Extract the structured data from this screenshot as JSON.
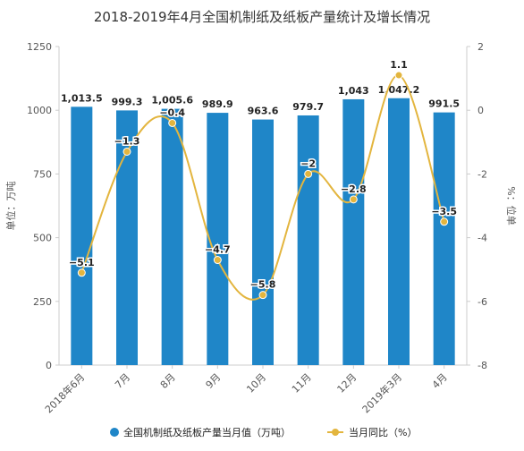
{
  "chart_data": {
    "type": "bar",
    "title": "2018-2019年4月全国机制纸及纸板产量统计及增长情况",
    "categories": [
      "2018年6月",
      "7月",
      "8月",
      "9月",
      "10月",
      "11月",
      "12月",
      "2019年3月",
      "4月"
    ],
    "series": [
      {
        "name": "全国机制纸及纸板产量当月值（万吨）",
        "type": "bar",
        "axis": "left",
        "values": [
          1013.5,
          999.3,
          1005.6,
          989.9,
          963.6,
          979.7,
          1043,
          1047.2,
          991.5
        ],
        "labels": [
          "1,013.5",
          "999.3",
          "1,005.6",
          "989.9",
          "963.6",
          "979.7",
          "1,043",
          "1,047.2",
          "991.5"
        ]
      },
      {
        "name": "当月同比（%）",
        "type": "line",
        "axis": "right",
        "values": [
          -5.1,
          -1.3,
          -0.4,
          -4.7,
          -5.8,
          -2,
          -2.8,
          1.1,
          -3.5
        ],
        "labels": [
          "−5.1",
          "−1.3",
          "−0.4",
          "−4.7",
          "−5.8",
          "−2",
          "−2.8",
          "1.1",
          "−3.5"
        ]
      }
    ],
    "ylabel": "单位：万吨",
    "y2label": "%：位单",
    "ylim": [
      0,
      1250
    ],
    "yticks": [
      0,
      250,
      500,
      750,
      1000,
      1250
    ],
    "y2lim": [
      -8,
      2
    ],
    "y2ticks": [
      -8,
      -6,
      -4,
      -2,
      0,
      2
    ],
    "y2tick_labels": [
      "-8",
      "-6",
      "-4",
      "-2",
      "0",
      "2"
    ],
    "grid": false,
    "legend": "bottom",
    "colors": {
      "bar": "#1f86c8",
      "line": "#e3b53e"
    }
  }
}
